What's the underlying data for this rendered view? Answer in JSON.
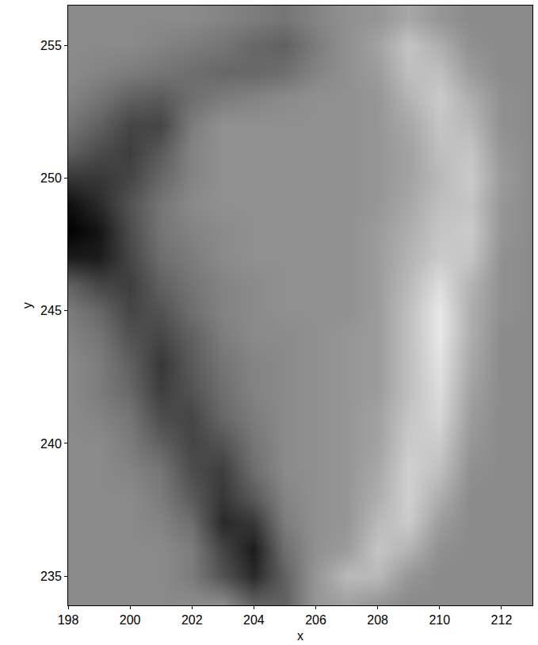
{
  "chart_data": {
    "type": "heatmap",
    "x_label": "x",
    "y_label": "y",
    "xlim": [
      198,
      213
    ],
    "ylim": [
      233.9,
      256.5
    ],
    "xticks": [
      198,
      200,
      202,
      204,
      206,
      208,
      210,
      212
    ],
    "yticks": [
      235,
      240,
      245,
      250,
      255
    ],
    "zlim": [
      -1,
      1
    ],
    "x": [
      198,
      199,
      200,
      201,
      202,
      203,
      204,
      205,
      206,
      207,
      208,
      209,
      210,
      211,
      212,
      213
    ],
    "y": [
      234,
      235,
      236,
      237,
      238,
      239,
      240,
      241,
      242,
      243,
      244,
      245,
      246,
      247,
      248,
      249,
      250,
      251,
      252,
      253,
      254,
      255,
      256
    ],
    "z": [
      [
        0,
        0,
        0,
        0,
        0,
        0,
        -0.3,
        -0.3,
        0.1,
        0.2,
        0.1,
        0,
        0,
        0,
        0,
        0
      ],
      [
        0,
        0,
        0,
        0,
        -0.1,
        -0.4,
        -0.7,
        -0.3,
        0.1,
        0.4,
        0.4,
        0.1,
        0,
        0,
        0,
        0
      ],
      [
        0,
        0,
        0,
        0,
        -0.1,
        -0.5,
        -0.8,
        -0.2,
        0.05,
        0.15,
        0.5,
        0.35,
        0.05,
        0,
        0,
        0
      ],
      [
        0,
        0,
        0,
        -0.05,
        -0.2,
        -0.7,
        -0.6,
        -0.1,
        0.05,
        0.1,
        0.4,
        0.55,
        0.15,
        0,
        0,
        0
      ],
      [
        0,
        0,
        0,
        -0.1,
        -0.35,
        -0.6,
        -0.35,
        -0.05,
        0.05,
        0.1,
        0.3,
        0.6,
        0.3,
        0,
        0,
        0
      ],
      [
        0,
        0,
        -0.05,
        -0.15,
        -0.45,
        -0.55,
        -0.2,
        0,
        0.05,
        0.1,
        0.25,
        0.6,
        0.45,
        0.05,
        0,
        0
      ],
      [
        0,
        0,
        -0.1,
        -0.3,
        -0.5,
        -0.4,
        -0.15,
        0,
        0.05,
        0.1,
        0.2,
        0.55,
        0.55,
        0.1,
        0,
        0
      ],
      [
        0,
        -0.05,
        -0.15,
        -0.45,
        -0.5,
        -0.25,
        -0.1,
        0,
        0.05,
        0.1,
        0.2,
        0.5,
        0.65,
        0.15,
        0,
        0
      ],
      [
        0,
        -0.1,
        -0.25,
        -0.55,
        -0.4,
        -0.2,
        -0.05,
        0,
        0.05,
        0.1,
        0.15,
        0.45,
        0.7,
        0.2,
        0,
        0
      ],
      [
        0,
        -0.1,
        -0.3,
        -0.6,
        -0.35,
        -0.15,
        -0.05,
        0,
        0.05,
        0.1,
        0.15,
        0.45,
        0.75,
        0.25,
        0,
        0
      ],
      [
        -0.05,
        -0.15,
        -0.4,
        -0.5,
        -0.3,
        -0.1,
        0,
        0,
        0.05,
        0.1,
        0.15,
        0.45,
        0.8,
        0.3,
        0,
        0
      ],
      [
        -0.1,
        -0.25,
        -0.5,
        -0.4,
        -0.2,
        -0.05,
        0,
        0.05,
        0.05,
        0.05,
        0.15,
        0.45,
        0.8,
        0.3,
        0.05,
        0
      ],
      [
        -0.3,
        -0.5,
        -0.55,
        -0.3,
        -0.15,
        -0.05,
        0,
        0.05,
        0.05,
        0.05,
        0.15,
        0.4,
        0.7,
        0.35,
        0.05,
        0
      ],
      [
        -0.8,
        -0.8,
        -0.5,
        -0.2,
        -0.1,
        0,
        0.05,
        0.05,
        0.05,
        0.05,
        0.15,
        0.35,
        0.55,
        0.5,
        0.05,
        0
      ],
      [
        -1,
        -0.85,
        -0.45,
        -0.15,
        -0.05,
        0,
        0.05,
        0.05,
        0.05,
        0.05,
        0.15,
        0.3,
        0.5,
        0.55,
        0.1,
        0
      ],
      [
        -0.9,
        -0.7,
        -0.4,
        -0.15,
        0,
        0.05,
        0.05,
        0.05,
        0.05,
        0.05,
        0.1,
        0.25,
        0.45,
        0.5,
        0.1,
        0
      ],
      [
        -0.6,
        -0.6,
        -0.5,
        -0.25,
        -0.05,
        0.05,
        0.05,
        0.05,
        0.05,
        0.05,
        0.1,
        0.2,
        0.4,
        0.55,
        0.15,
        0
      ],
      [
        -0.3,
        -0.45,
        -0.55,
        -0.35,
        -0.05,
        0.05,
        0.05,
        0.05,
        0.05,
        0.05,
        0.1,
        0.2,
        0.45,
        0.5,
        0.1,
        0
      ],
      [
        -0.15,
        -0.3,
        -0.5,
        -0.5,
        -0.1,
        0.05,
        0.05,
        0.05,
        0.05,
        0.05,
        0.1,
        0.25,
        0.5,
        0.4,
        0.05,
        0
      ],
      [
        -0.05,
        -0.15,
        -0.3,
        -0.35,
        -0.2,
        -0.1,
        -0.05,
        0,
        0.05,
        0.05,
        0.1,
        0.35,
        0.55,
        0.3,
        0.05,
        0
      ],
      [
        0,
        -0.05,
        -0.1,
        -0.15,
        -0.2,
        -0.25,
        -0.25,
        -0.2,
        -0.05,
        0.05,
        0.15,
        0.45,
        0.45,
        0.15,
        0,
        0
      ],
      [
        0,
        0,
        0,
        -0.05,
        -0.1,
        -0.15,
        -0.25,
        -0.3,
        -0.1,
        0.05,
        0.2,
        0.5,
        0.3,
        0.05,
        0,
        0
      ],
      [
        0,
        0,
        0,
        0,
        0,
        -0.05,
        -0.1,
        -0.15,
        -0.05,
        0.05,
        0.1,
        0.25,
        0.1,
        0,
        0,
        0
      ]
    ]
  }
}
